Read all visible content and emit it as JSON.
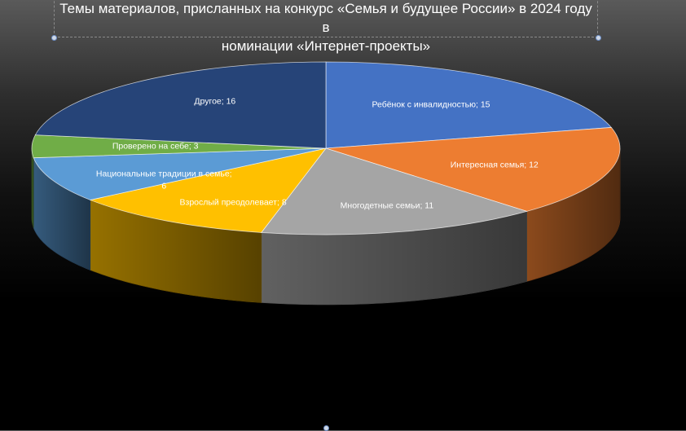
{
  "title_lines": [
    "Темы материалов, присланных на конкурс «Семья и будущее России» в 2024 году в",
    "номинации «Интернет-проекты»"
  ],
  "chart_data": {
    "type": "pie",
    "style": "3d",
    "title": "Темы материалов, присланных на конкурс «Семья и будущее России» в 2024 году в номинации «Интернет-проекты»",
    "categories": [
      "Ребёнок с инвалидностью",
      "Интересная семья",
      "Многодетные семьи",
      "Взрослый преодолевает",
      "Национальные традиции в  семье",
      "Проверено на себе",
      "Другое"
    ],
    "values": [
      15,
      12,
      11,
      8,
      6,
      3,
      16
    ],
    "colors": [
      "#4472C4",
      "#ED7D31",
      "#A5A5A5",
      "#FFC000",
      "#5B9BD5",
      "#70AD47",
      "#264478"
    ],
    "data_labels": [
      "Ребёнок с инвалидностью; 15",
      "Интересная семья; 12",
      "Многодетные семьи; 11",
      "Взрослый преодолевает; 8",
      "Национальные традиции в  семье;",
      "Проверено на себе; 3",
      "Другое; 16"
    ],
    "data_label_second_line": [
      "",
      "",
      "",
      "",
      "6",
      "",
      ""
    ],
    "legend": "none"
  }
}
